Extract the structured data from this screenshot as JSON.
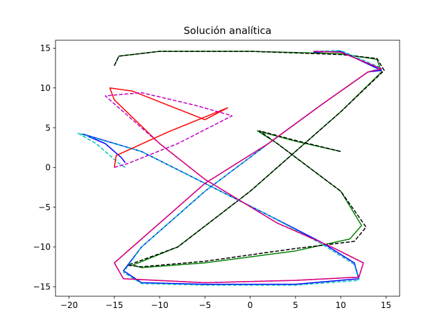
{
  "chart_data": {
    "type": "line",
    "title": "Solución analítica",
    "xlabel": "",
    "ylabel": "",
    "xlim": [
      -21.5,
      16.5
    ],
    "ylim": [
      -16.2,
      16
    ],
    "xticks": [
      -20,
      -15,
      -10,
      -5,
      0,
      5,
      10,
      15
    ],
    "yticks": [
      -15,
      -10,
      -5,
      0,
      5,
      10,
      15
    ],
    "grid": false,
    "legend": "none",
    "series": [
      {
        "color": "#008000",
        "linestyle": "solid",
        "points": [
          [
            -15,
            12.8
          ],
          [
            -14.5,
            14
          ],
          [
            -10,
            14.6
          ],
          [
            0,
            14.6
          ],
          [
            10,
            14.3
          ],
          [
            14,
            13.6
          ],
          [
            14.5,
            12
          ],
          [
            10,
            7
          ],
          [
            0,
            -3
          ],
          [
            -8,
            -10
          ],
          [
            -13,
            -12.3
          ],
          [
            -12,
            -12.6
          ],
          [
            -5,
            -12
          ],
          [
            5,
            -10.5
          ],
          [
            11,
            -9
          ],
          [
            12.3,
            -7.3
          ],
          [
            10,
            -3
          ],
          [
            3,
            3
          ],
          [
            0.8,
            4.6
          ],
          [
            5,
            3.3
          ],
          [
            10,
            2
          ]
        ]
      },
      {
        "color": "#000000",
        "linestyle": "dashed",
        "points": [
          [
            -15,
            12.8
          ],
          [
            -14.5,
            14
          ],
          [
            -10,
            14.6
          ],
          [
            0,
            14.6
          ],
          [
            10,
            14.2
          ],
          [
            14,
            13.7
          ],
          [
            14.8,
            12.2
          ],
          [
            10,
            7
          ],
          [
            0,
            -3
          ],
          [
            -8,
            -10
          ],
          [
            -13.5,
            -12.3
          ],
          [
            -12,
            -12.5
          ],
          [
            -5,
            -11.8
          ],
          [
            5,
            -10.2
          ],
          [
            11.5,
            -9.3
          ],
          [
            12.8,
            -7.5
          ],
          [
            10,
            -3
          ],
          [
            3,
            3
          ],
          [
            1,
            4.6
          ],
          [
            5,
            3.4
          ],
          [
            10,
            2
          ]
        ]
      },
      {
        "color": "#0000ff",
        "linestyle": "solid",
        "points": [
          [
            -13.8,
            0.6
          ],
          [
            -14.2,
            1.2
          ],
          [
            -16,
            3
          ],
          [
            -18.5,
            4.2
          ],
          [
            -12,
            2
          ],
          [
            -5,
            -2
          ],
          [
            2,
            -6
          ],
          [
            8,
            -9.5
          ],
          [
            11.5,
            -12
          ],
          [
            12,
            -14
          ],
          [
            5,
            -14.7
          ],
          [
            -5,
            -14.7
          ],
          [
            -12,
            -14.5
          ],
          [
            -14,
            -13
          ],
          [
            -12,
            -10
          ],
          [
            -5,
            -3
          ],
          [
            2,
            3
          ],
          [
            8,
            8
          ],
          [
            13,
            12
          ],
          [
            14.5,
            12.2
          ],
          [
            10,
            14.6
          ],
          [
            7,
            14.5
          ]
        ]
      },
      {
        "color": "#00bfbf",
        "linestyle": "dashed",
        "points": [
          [
            -13.8,
            0
          ],
          [
            -14.5,
            0.5
          ],
          [
            -17,
            3
          ],
          [
            -19,
            4.3
          ],
          [
            -12,
            2
          ],
          [
            -5,
            -2
          ],
          [
            2,
            -6
          ],
          [
            8,
            -9.7
          ],
          [
            11.5,
            -12.2
          ],
          [
            12,
            -14.2
          ],
          [
            5,
            -14.8
          ],
          [
            -5,
            -14.8
          ],
          [
            -12,
            -14.6
          ],
          [
            -14,
            -13.2
          ],
          [
            -12,
            -10
          ],
          [
            -5,
            -3
          ],
          [
            2,
            3
          ],
          [
            8,
            8
          ],
          [
            13,
            12
          ],
          [
            14.5,
            12.5
          ],
          [
            10,
            14.7
          ],
          [
            7,
            14.6
          ]
        ]
      },
      {
        "color": "#ff0000",
        "linestyle": "solid",
        "points": [
          [
            -15,
            0
          ],
          [
            -14.8,
            1.5
          ],
          [
            -9,
            4.5
          ],
          [
            -2.5,
            7.5
          ],
          [
            -5,
            6
          ],
          [
            -13,
            9.6
          ],
          [
            -15.5,
            10
          ],
          [
            -15,
            8.5
          ],
          [
            -10,
            3
          ],
          [
            -5,
            -1.5
          ],
          [
            3,
            -7
          ],
          [
            9,
            -10
          ],
          [
            12.5,
            -12
          ],
          [
            12,
            -13.8
          ],
          [
            5,
            -14.2
          ],
          [
            -5,
            -14.5
          ],
          [
            -14,
            -14
          ],
          [
            -15,
            -12
          ],
          [
            -12,
            -9
          ],
          [
            -5,
            -2
          ],
          [
            2,
            3
          ],
          [
            8,
            8
          ],
          [
            13,
            12
          ],
          [
            14.5,
            12.4
          ],
          [
            10,
            14.5
          ],
          [
            7,
            14.6
          ]
        ]
      },
      {
        "color": "#bf00bf",
        "linestyle": "dashed",
        "points": [
          [
            -15,
            0
          ],
          [
            -13.5,
            0.5
          ],
          [
            -8,
            3
          ],
          [
            -2,
            6.5
          ],
          [
            -6,
            7.8
          ],
          [
            -12,
            9.4
          ],
          [
            -16,
            9
          ],
          [
            -15,
            8
          ],
          [
            -10,
            3
          ],
          [
            -5,
            -1.5
          ],
          [
            3,
            -7
          ],
          [
            9,
            -10
          ],
          [
            12.5,
            -12
          ],
          [
            12,
            -13.8
          ],
          [
            5,
            -14.2
          ],
          [
            -5,
            -14.5
          ],
          [
            -14,
            -14
          ],
          [
            -15,
            -12
          ],
          [
            -12,
            -9
          ],
          [
            -5,
            -2
          ],
          [
            2,
            3
          ],
          [
            8,
            8
          ],
          [
            13,
            12
          ],
          [
            14.5,
            12.4
          ],
          [
            10,
            14.5
          ],
          [
            7,
            14.6
          ]
        ]
      }
    ]
  }
}
